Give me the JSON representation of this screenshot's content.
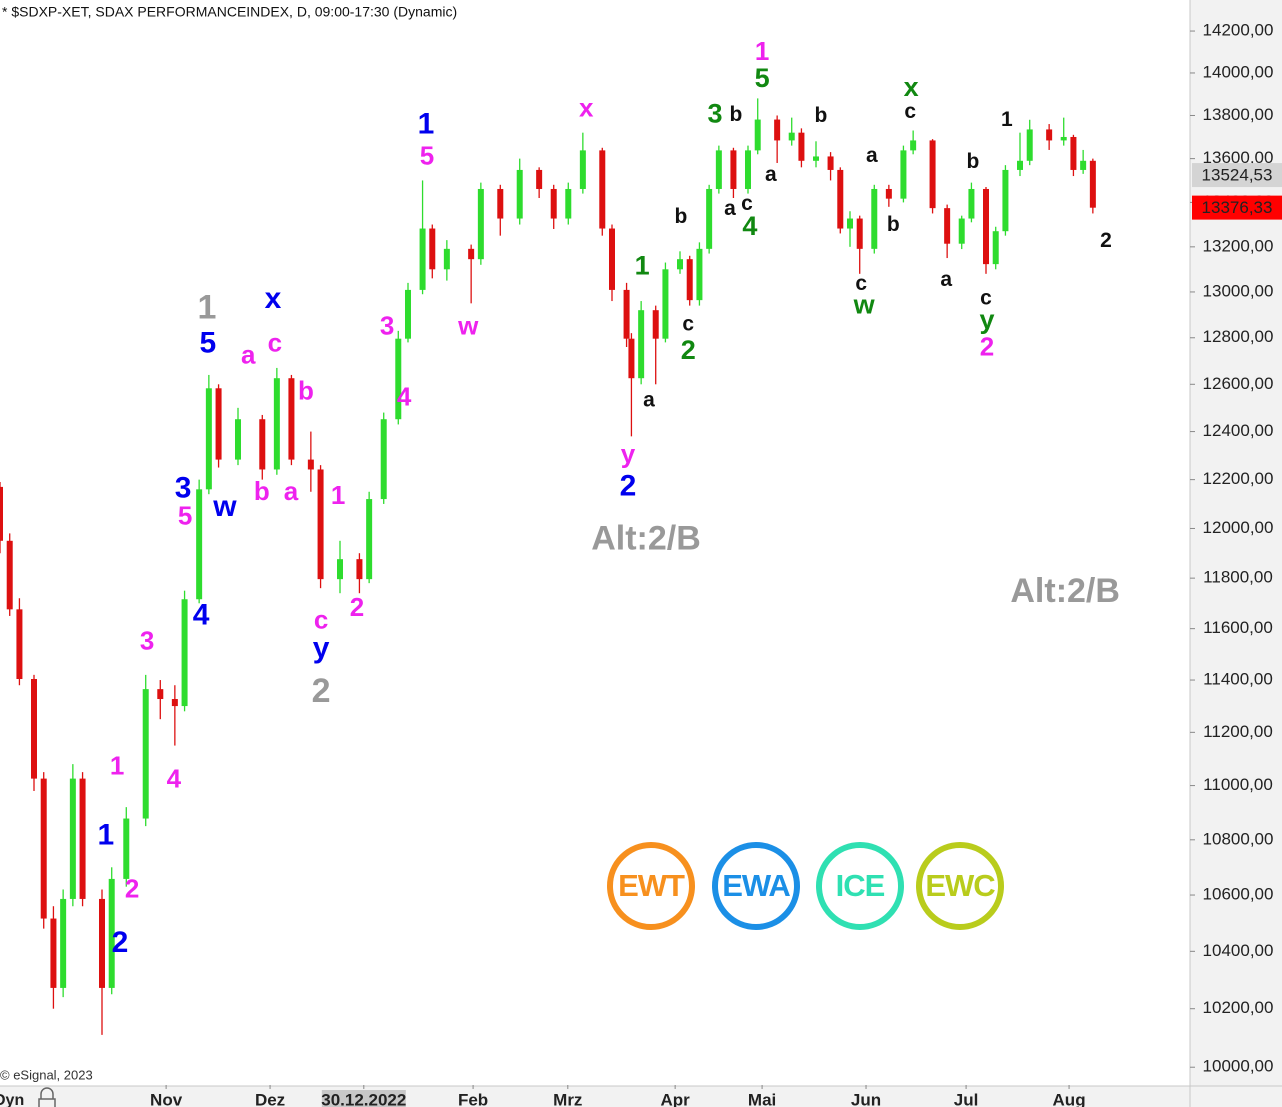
{
  "chart_data": {
    "type": "candlestick",
    "title": "* $SDXP-XET, SDAX PERFORMANCEINDEX, D, 09:00-17:30 (Dynamic)",
    "credit": "© eSignal, 2023",
    "corner_label": "Dyn",
    "log_scale": true,
    "up_color": "#2edc2e",
    "down_color": "#dd1010",
    "xlim": [
      0,
      245
    ],
    "ylim": [
      9940,
      14350
    ],
    "x": [
      0,
      2,
      4,
      7,
      9,
      11,
      13,
      15,
      17,
      21,
      23,
      26,
      30,
      33,
      36,
      38,
      41,
      43,
      45,
      49,
      54,
      57,
      60,
      64,
      66,
      70,
      74,
      76,
      79,
      82,
      84,
      87,
      89,
      92,
      97,
      99,
      103,
      107,
      111,
      114,
      117,
      120,
      124,
      126,
      129,
      130,
      132,
      135,
      137,
      140,
      142,
      144,
      146,
      148,
      151,
      154,
      156,
      160,
      163,
      165,
      168,
      171,
      173,
      175,
      177,
      180,
      183,
      186,
      188,
      192,
      195,
      198,
      200,
      203,
      205,
      207,
      210,
      212,
      216,
      219,
      221,
      223,
      225
    ],
    "open": [
      12170,
      11950,
      11676,
      11404,
      11026,
      10516,
      10272,
      10586,
      11026,
      10586,
      10272,
      10658,
      10878,
      11365,
      11327,
      11300,
      11716,
      12160,
      12583,
      12283,
      12452,
      12242,
      12626,
      12283,
      12242,
      11796,
      11876,
      11796,
      12120,
      12452,
      12796,
      13009,
      13282,
      13100,
      13191,
      13145,
      13461,
      13327,
      13548,
      13461,
      13327,
      13461,
      13638,
      13282,
      13009,
      12796,
      12626,
      12920,
      12796,
      13100,
      13145,
      12964,
      13191,
      13461,
      13638,
      13461,
      13638,
      13781,
      13684,
      13720,
      13590,
      13610,
      13548,
      13282,
      13327,
      13191,
      13461,
      13417,
      13638,
      13684,
      13374,
      13214,
      13327,
      13461,
      13123,
      13270,
      13548,
      13590,
      13735,
      13684,
      13700,
      13548,
      13590
    ],
    "high": [
      12190,
      11980,
      11720,
      11420,
      11050,
      10560,
      10620,
      11080,
      11050,
      10620,
      10700,
      10920,
      11420,
      11400,
      11380,
      11750,
      12200,
      12640,
      12600,
      12500,
      12470,
      12670,
      12640,
      12400,
      12260,
      11950,
      11900,
      12150,
      12480,
      12830,
      13040,
      13500,
      13300,
      13230,
      13210,
      13490,
      13480,
      13600,
      13560,
      13480,
      13490,
      13720,
      13650,
      13300,
      13040,
      12820,
      12960,
      12940,
      13130,
      13180,
      13160,
      13220,
      13480,
      13660,
      13650,
      13660,
      13880,
      13800,
      13790,
      13740,
      13680,
      13630,
      13560,
      13360,
      13340,
      13480,
      13480,
      13660,
      13730,
      13690,
      13390,
      13340,
      13490,
      13470,
      13290,
      13570,
      13720,
      13780,
      13760,
      13790,
      13710,
      13640,
      13600
    ],
    "low": [
      11900,
      11650,
      11380,
      10980,
      10480,
      10200,
      10240,
      10560,
      10560,
      10110,
      10250,
      10630,
      10850,
      11250,
      11150,
      11280,
      11700,
      12140,
      12250,
      12260,
      12200,
      12220,
      12260,
      12150,
      11760,
      11740,
      11740,
      11780,
      12100,
      12430,
      12780,
      12990,
      13060,
      13050,
      12950,
      13120,
      13250,
      13300,
      13420,
      13280,
      13300,
      13440,
      13250,
      12960,
      12760,
      12380,
      12600,
      12600,
      12780,
      13080,
      12940,
      12940,
      13170,
      13440,
      13420,
      13440,
      13620,
      13580,
      13660,
      13560,
      13560,
      13500,
      13260,
      13200,
      13080,
      13170,
      13380,
      13400,
      13620,
      13350,
      13150,
      13190,
      13310,
      13080,
      13100,
      13250,
      13520,
      13570,
      13640,
      13660,
      13520,
      13530,
      13350
    ],
    "close": [
      11950,
      11676,
      11404,
      11026,
      10516,
      10272,
      10586,
      11026,
      10586,
      10272,
      10658,
      10878,
      11365,
      11327,
      11300,
      11716,
      12160,
      12583,
      12283,
      12452,
      12242,
      12626,
      12283,
      12242,
      11796,
      11876,
      11796,
      12120,
      12452,
      12796,
      13009,
      13282,
      13100,
      13191,
      13145,
      13461,
      13327,
      13548,
      13461,
      13327,
      13461,
      13638,
      13282,
      13009,
      12796,
      12626,
      12920,
      12796,
      13100,
      13145,
      12964,
      13191,
      13461,
      13638,
      13461,
      13638,
      13781,
      13684,
      13720,
      13590,
      13610,
      13548,
      13282,
      13327,
      13191,
      13461,
      13417,
      13638,
      13684,
      13374,
      13214,
      13327,
      13461,
      13123,
      13270,
      13548,
      13590,
      13735,
      13684,
      13700,
      13548,
      13590,
      13376
    ],
    "yticks": [
      {
        "value": 10000,
        "label": "10000,00"
      },
      {
        "value": 10200,
        "label": "10200,00"
      },
      {
        "value": 10400,
        "label": "10400,00"
      },
      {
        "value": 10600,
        "label": "10600,00"
      },
      {
        "value": 10800,
        "label": "10800,00"
      },
      {
        "value": 11000,
        "label": "11000,00"
      },
      {
        "value": 11200,
        "label": "11200,00"
      },
      {
        "value": 11400,
        "label": "11400,00"
      },
      {
        "value": 11600,
        "label": "11600,00"
      },
      {
        "value": 11800,
        "label": "11800,00"
      },
      {
        "value": 12000,
        "label": "12000,00"
      },
      {
        "value": 12200,
        "label": "12200,00"
      },
      {
        "value": 12400,
        "label": "12400,00"
      },
      {
        "value": 12600,
        "label": "12600,00"
      },
      {
        "value": 12800,
        "label": "12800,00"
      },
      {
        "value": 13000,
        "label": "13000,00"
      },
      {
        "value": 13200,
        "label": "13200,00"
      },
      {
        "value": 13400,
        "label": "13400,00"
      },
      {
        "value": 13600,
        "label": "13600,00"
      },
      {
        "value": 13800,
        "label": "13800,00"
      },
      {
        "value": 14000,
        "label": "14000,00"
      },
      {
        "value": 14200,
        "label": "14200,00"
      }
    ],
    "xticks": [
      {
        "value": 34.2,
        "label": "Nov"
      },
      {
        "value": 55.6,
        "label": "Dez"
      },
      {
        "value": 74.9,
        "label": "30.12.2022"
      },
      {
        "value": 97.4,
        "label": "Feb"
      },
      {
        "value": 116.9,
        "label": "Mrz"
      },
      {
        "value": 139,
        "label": "Apr"
      },
      {
        "value": 156.9,
        "label": "Mai"
      },
      {
        "value": 178.3,
        "label": "Jun"
      },
      {
        "value": 198.9,
        "label": "Jul"
      },
      {
        "value": 220.1,
        "label": "Aug"
      }
    ],
    "price_labels": [
      {
        "value": 13524.53,
        "label": "13524,53",
        "color": "#d4d4d4"
      },
      {
        "value": 13376.33,
        "label": "13376,33",
        "color": "#ff0000"
      }
    ],
    "annotations": [
      {
        "text": "1",
        "color": "#999999",
        "x": 42.6,
        "y": 12923
      },
      {
        "text": "5",
        "color": "#0000ee",
        "x": 42.8,
        "y": 12770
      },
      {
        "text": "x",
        "color": "#0000ee",
        "x": 56.2,
        "y": 12965
      },
      {
        "text": "c",
        "color": "#ee22ee",
        "x": 56.6,
        "y": 12770
      },
      {
        "text": "a",
        "color": "#ee22ee",
        "x": 51.1,
        "y": 12719
      },
      {
        "text": "b",
        "color": "#ee22ee",
        "x": 63,
        "y": 12565
      },
      {
        "text": "3",
        "color": "#0000ee",
        "x": 37.7,
        "y": 12160
      },
      {
        "text": "5",
        "color": "#ee22ee",
        "x": 38.1,
        "y": 12044
      },
      {
        "text": "w",
        "color": "#0000ee",
        "x": 46.3,
        "y": 12084
      },
      {
        "text": "b",
        "color": "#ee22ee",
        "x": 53.9,
        "y": 12144
      },
      {
        "text": "a",
        "color": "#ee22ee",
        "x": 59.9,
        "y": 12144
      },
      {
        "text": "4",
        "color": "#0000ee",
        "x": 41.4,
        "y": 11648
      },
      {
        "text": "3",
        "color": "#ee22ee",
        "x": 30.3,
        "y": 11546
      },
      {
        "text": "1",
        "color": "#ee22ee",
        "x": 69.6,
        "y": 12128
      },
      {
        "text": "c",
        "color": "#ee22ee",
        "x": 66.1,
        "y": 11628
      },
      {
        "text": "y",
        "color": "#0000ee",
        "x": 66.1,
        "y": 11519
      },
      {
        "text": "2",
        "color": "#ee22ee",
        "x": 73.5,
        "y": 11676
      },
      {
        "text": "2",
        "color": "#999999",
        "x": 66.1,
        "y": 11350
      },
      {
        "text": "1",
        "color": "#ee22ee",
        "x": 24.1,
        "y": 11067
      },
      {
        "text": "4",
        "color": "#ee22ee",
        "x": 35.8,
        "y": 11019
      },
      {
        "text": "1",
        "color": "#0000ee",
        "x": 21.8,
        "y": 10811
      },
      {
        "text": "2",
        "color": "#ee22ee",
        "x": 27.2,
        "y": 10615
      },
      {
        "text": "2",
        "color": "#0000ee",
        "x": 24.7,
        "y": 10425
      },
      {
        "text": "3",
        "color": "#ee22ee",
        "x": 79.7,
        "y": 12843
      },
      {
        "text": "4",
        "color": "#ee22ee",
        "x": 83.2,
        "y": 12539
      },
      {
        "text": "1",
        "color": "#0000ee",
        "x": 87.7,
        "y": 13752
      },
      {
        "text": "5",
        "color": "#ee22ee",
        "x": 87.9,
        "y": 13605
      },
      {
        "text": "w",
        "color": "#ee22ee",
        "x": 96.4,
        "y": 12843
      },
      {
        "text": "x",
        "color": "#ee22ee",
        "x": 120.7,
        "y": 13828
      },
      {
        "text": "y",
        "color": "#ee22ee",
        "x": 129.3,
        "y": 12300
      },
      {
        "text": "2",
        "color": "#0000ee",
        "x": 129.3,
        "y": 12167
      },
      {
        "text": "a",
        "color": "#111111",
        "x": 133.6,
        "y": 12530
      },
      {
        "text": "Alt:2/B",
        "color": "#999999",
        "x": 133,
        "y": 11951
      },
      {
        "text": "1",
        "color": "#118811",
        "x": 132.2,
        "y": 13109
      },
      {
        "text": "b",
        "color": "#111111",
        "x": 140.2,
        "y": 13332
      },
      {
        "text": "c",
        "color": "#111111",
        "x": 141.7,
        "y": 12855
      },
      {
        "text": "2",
        "color": "#118811",
        "x": 141.7,
        "y": 12740
      },
      {
        "text": "3",
        "color": "#118811",
        "x": 147.2,
        "y": 13800
      },
      {
        "text": "b",
        "color": "#111111",
        "x": 151.5,
        "y": 13800
      },
      {
        "text": "a",
        "color": "#111111",
        "x": 150.3,
        "y": 13368
      },
      {
        "text": "c",
        "color": "#111111",
        "x": 153.8,
        "y": 13391
      },
      {
        "text": "4",
        "color": "#118811",
        "x": 154.4,
        "y": 13286
      },
      {
        "text": "1",
        "color": "#ee22ee",
        "x": 156.9,
        "y": 14095
      },
      {
        "text": "5",
        "color": "#118811",
        "x": 156.9,
        "y": 13967
      },
      {
        "text": "a",
        "color": "#111111",
        "x": 158.7,
        "y": 13522
      },
      {
        "text": "b",
        "color": "#111111",
        "x": 169,
        "y": 13795
      },
      {
        "text": "a",
        "color": "#111111",
        "x": 179.5,
        "y": 13610
      },
      {
        "text": "x",
        "color": "#118811",
        "x": 187.6,
        "y": 13926
      },
      {
        "text": "c",
        "color": "#111111",
        "x": 187.4,
        "y": 13814
      },
      {
        "text": "c",
        "color": "#111111",
        "x": 177.3,
        "y": 13032
      },
      {
        "text": "w",
        "color": "#118811",
        "x": 177.9,
        "y": 12936
      },
      {
        "text": "b",
        "color": "#111111",
        "x": 183.9,
        "y": 13295
      },
      {
        "text": "b",
        "color": "#111111",
        "x": 200.3,
        "y": 13583
      },
      {
        "text": "a",
        "color": "#111111",
        "x": 194.8,
        "y": 13050
      },
      {
        "text": "c",
        "color": "#111111",
        "x": 203,
        "y": 12970
      },
      {
        "text": "y",
        "color": "#118811",
        "x": 203.2,
        "y": 12872
      },
      {
        "text": "2",
        "color": "#ee22ee",
        "x": 203.2,
        "y": 12753
      },
      {
        "text": "1",
        "color": "#111111",
        "x": 207.3,
        "y": 13776
      },
      {
        "text": "2",
        "color": "#111111",
        "x": 227.7,
        "y": 13223
      },
      {
        "text": "Alt:2/B",
        "color": "#999999",
        "x": 219.3,
        "y": 11740
      }
    ],
    "logos": [
      {
        "text": "EWT",
        "color": "#f7901e"
      },
      {
        "text": "EWA",
        "color": "#1b8fe6"
      },
      {
        "text": "ICE",
        "color": "#2fe0b2"
      },
      {
        "text": "EWC",
        "color": "#b9cc1c"
      }
    ]
  }
}
